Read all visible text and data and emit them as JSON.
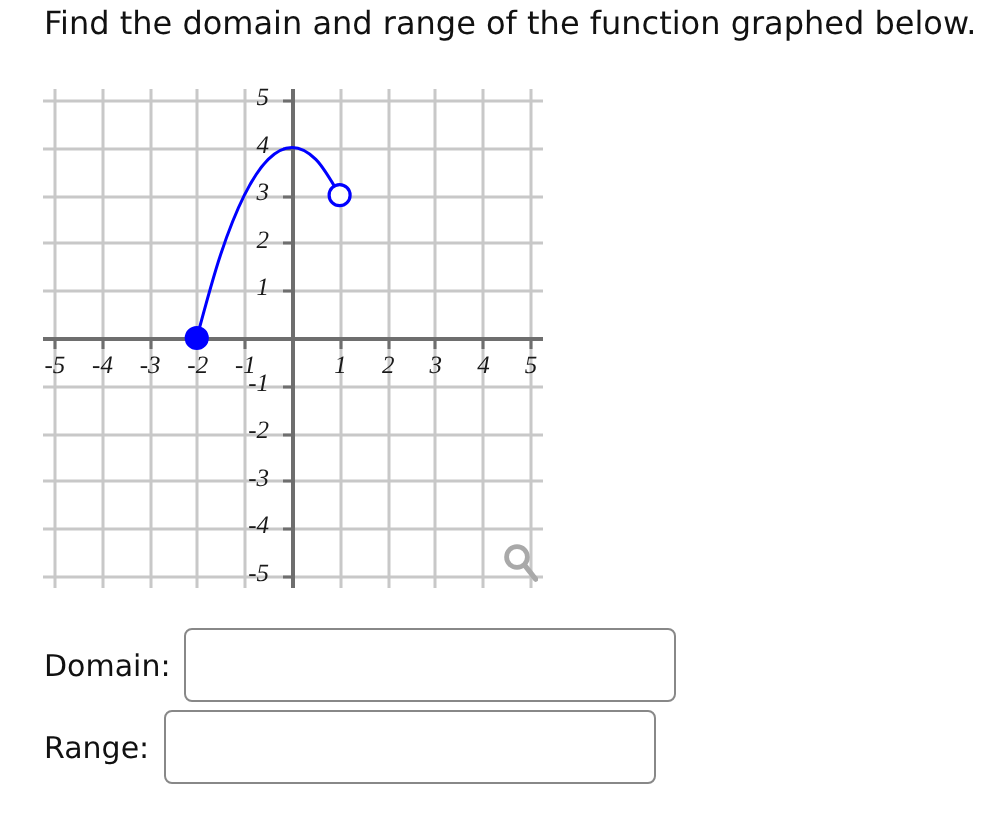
{
  "chart_data": {
    "type": "line",
    "title": "Find the domain and range of the function graphed below.",
    "series": [
      {
        "type": "line",
        "color": "#0000ff",
        "x": [
          -2,
          -1.5,
          -1,
          -0.5,
          0,
          0.5,
          1
        ],
        "values": [
          0,
          1.75,
          3,
          3.75,
          4,
          3.75,
          3
        ]
      },
      {
        "type": "scatter",
        "color": "#0000ff",
        "colors": [
          "#0000ff",
          "#ffffff"
        ],
        "marker": "circle",
        "x": [
          -2,
          1
        ],
        "values": [
          0,
          3
        ]
      }
    ],
    "xlim": [
      -5.25,
      5.25
    ],
    "ylim": [
      -5.25,
      5.25
    ],
    "xticks": [
      -5,
      -4,
      -3,
      -2,
      -1,
      1,
      2,
      3,
      4,
      5
    ],
    "yticks": [
      -5,
      -4,
      -3,
      -2,
      -1,
      1,
      2,
      3,
      4,
      5
    ],
    "grid": true,
    "annotations": [
      "Domain:",
      "Range:"
    ]
  }
}
